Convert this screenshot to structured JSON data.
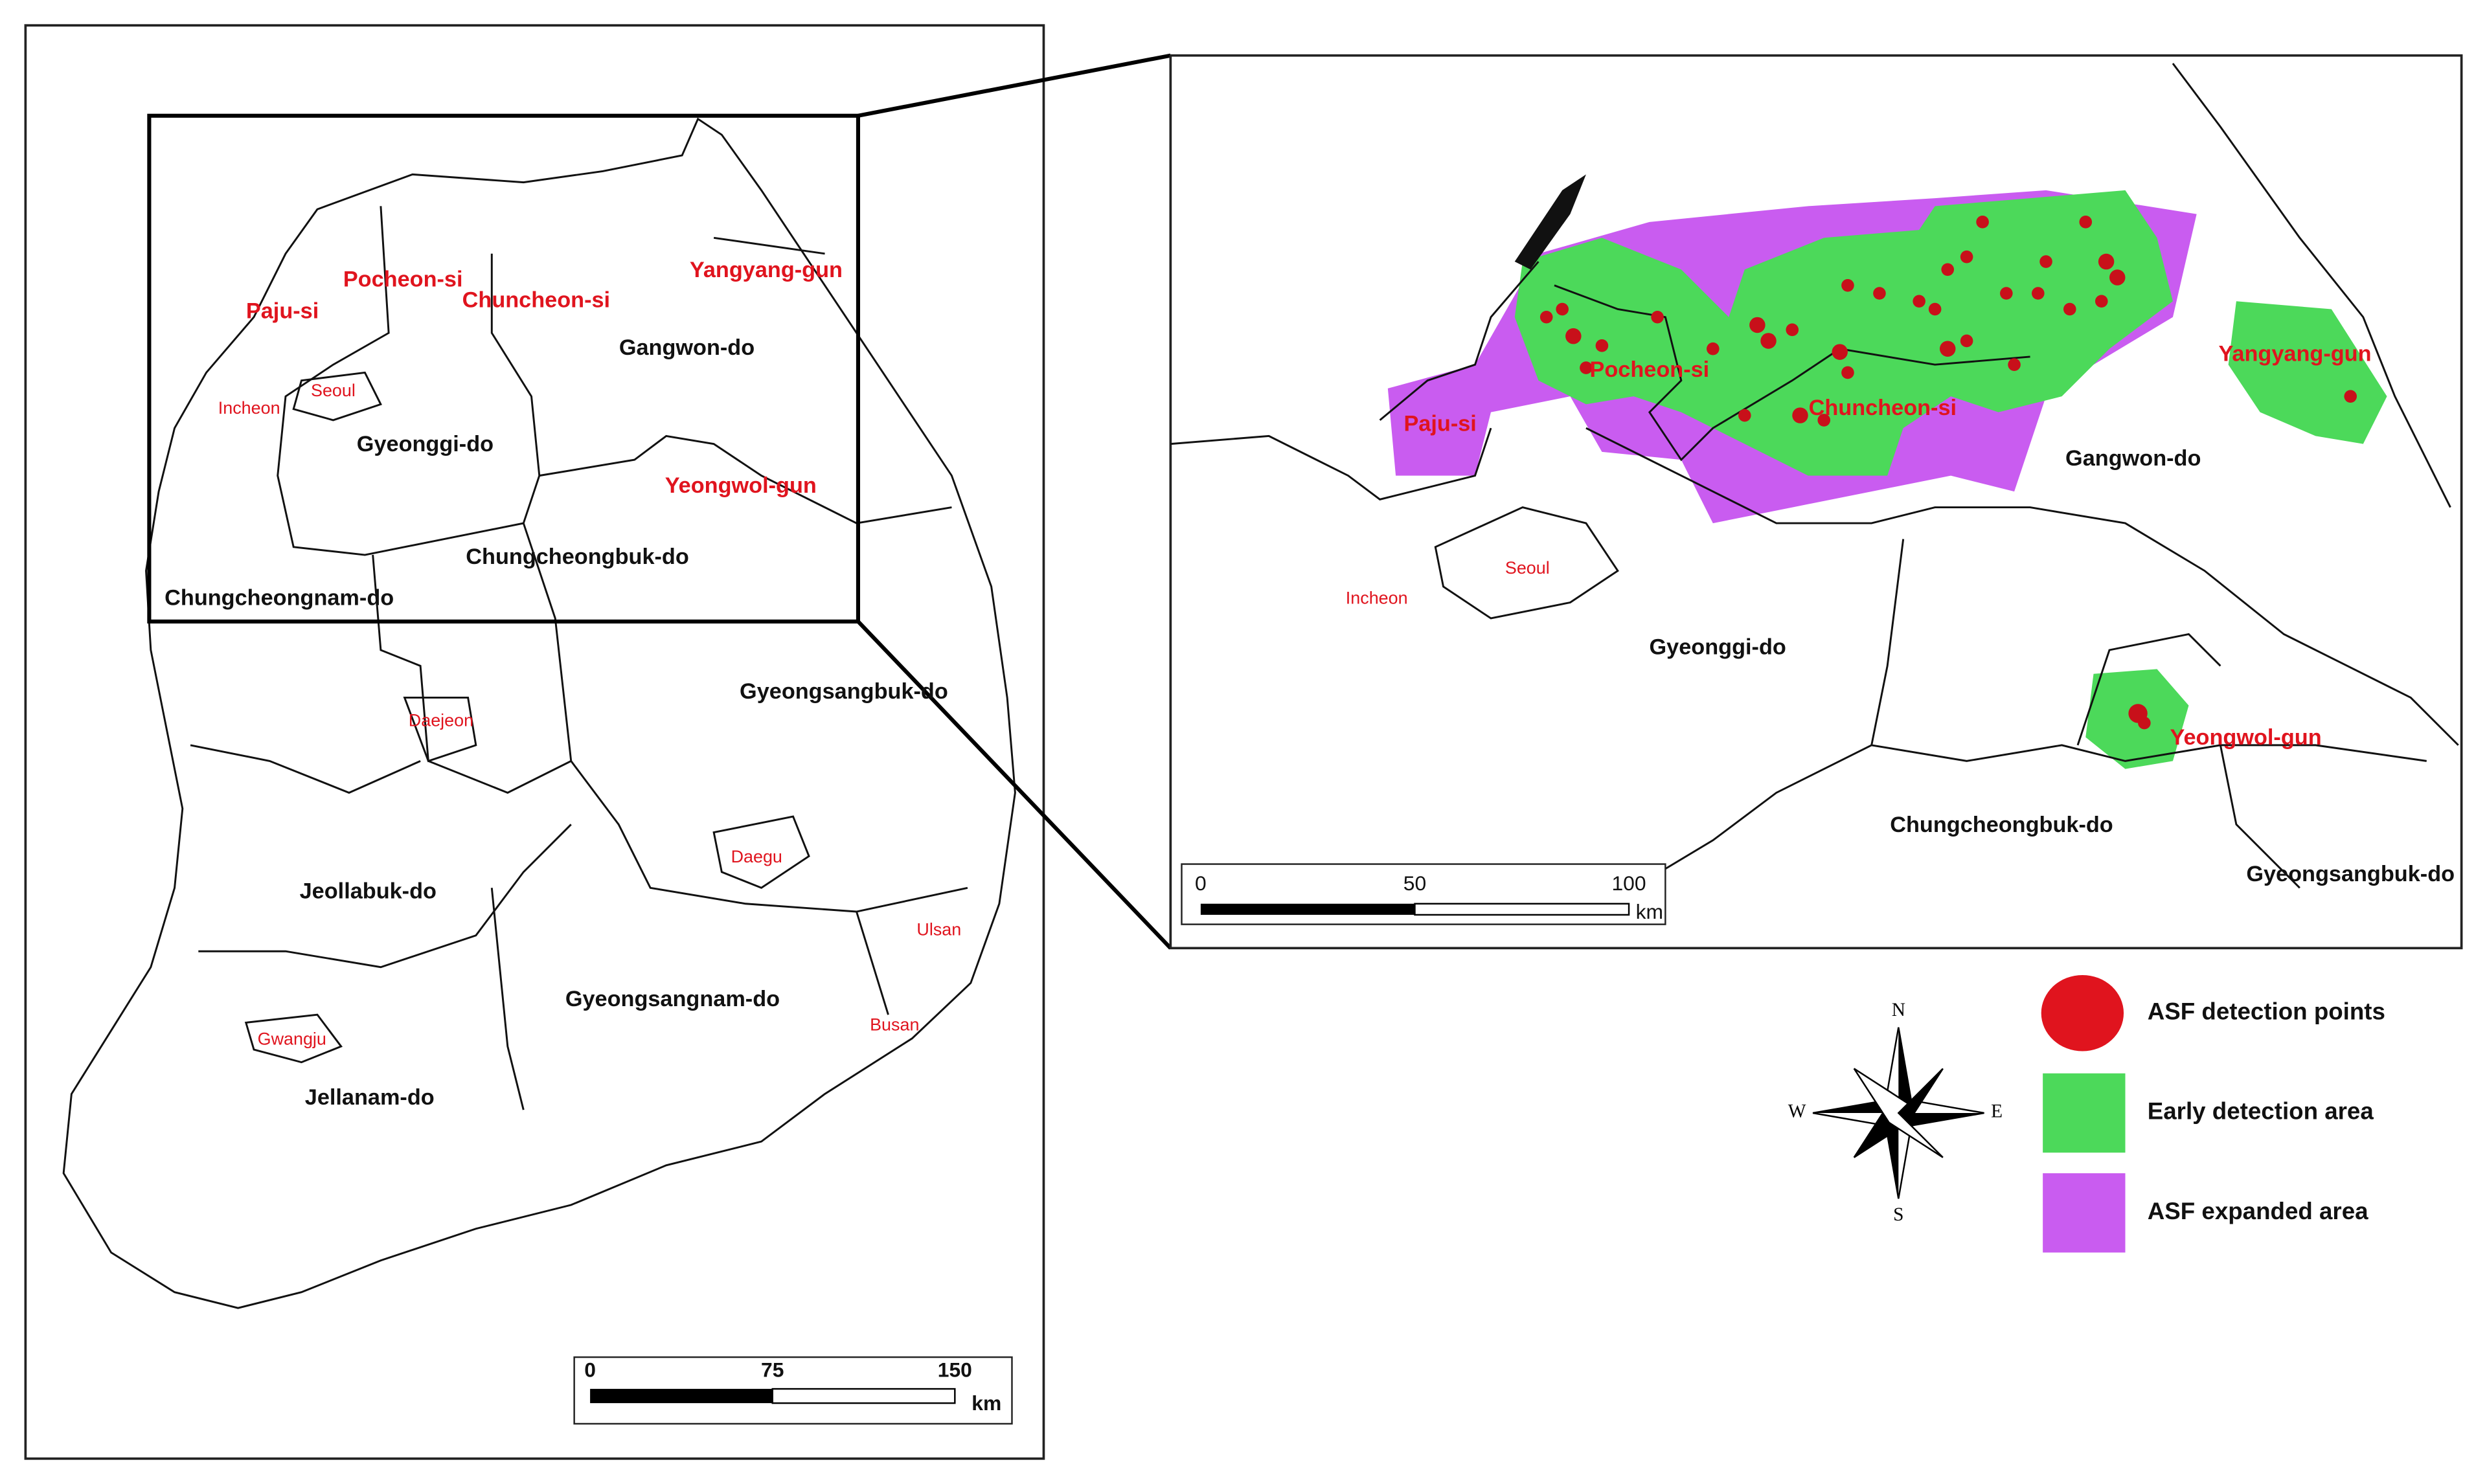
{
  "overview_map": {
    "labels": [
      "Paju-si",
      "Pocheon-si",
      "Chuncheon-si",
      "Yangyang-gun",
      "Seoul",
      "Incheon",
      "Yeongwol-gun",
      "Daejeon",
      "Daegu",
      "Ulsan",
      "Busan",
      "Gwangju",
      "Gangwon-do",
      "Gyeonggi-do",
      "Chungcheongbuk-do",
      "Chungcheongnam-do",
      "Gyeongsangbuk-do",
      "Jeollabuk-do",
      "Gyeongsangnam-do",
      "Jellanam-do"
    ],
    "scale_bar": {
      "ticks": [
        "0",
        "75",
        "150"
      ],
      "unit": "km"
    }
  },
  "detail_map": {
    "labels": [
      "Paju-si",
      "Pocheon-si",
      "Chuncheon-si",
      "Yangyang-gun",
      "Yeongwol-gun",
      "Seoul",
      "Incheon",
      "Gangwon-do",
      "Gyeonggi-do",
      "Chungcheongbuk-do",
      "Gyeongsangbuk-do"
    ],
    "scale_bar": {
      "ticks": [
        "0",
        "50",
        "100"
      ],
      "unit": "km"
    }
  },
  "compass": {
    "n": "N",
    "s": "S",
    "e": "E",
    "w": "W"
  },
  "legend": [
    {
      "label": "ASF detection points",
      "color": "#e0141e"
    },
    {
      "label": "Early detection area",
      "color": "#4cd95a"
    },
    {
      "label": "ASF expanded area",
      "color": "#c95cf0"
    }
  ]
}
